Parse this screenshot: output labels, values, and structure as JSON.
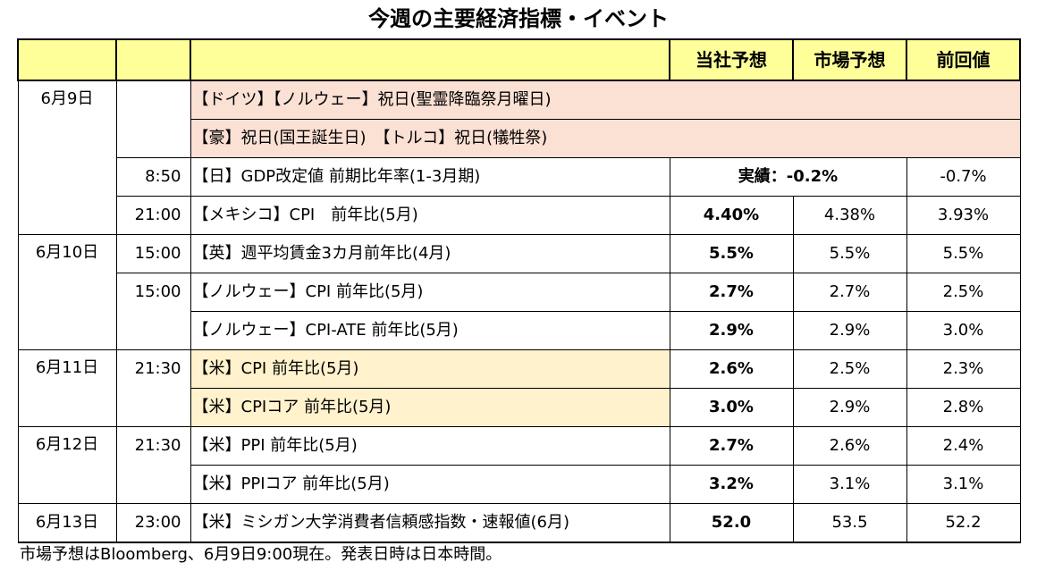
{
  "title": "今週の主要経済指標・イベント",
  "header": {
    "col_forecast": "当社予想",
    "col_market": "市場予想",
    "col_previous": "前回値"
  },
  "rows": [
    {
      "date": "6月9日",
      "time": "",
      "indicator": "【ドイツ】【ノルウェー】祝日(聖霊降臨祭月曜日)",
      "type": "holiday"
    },
    {
      "date": "",
      "time": "",
      "indicator": "【豪】祝日(国王誕生日)　【トルコ】祝日(犠牲祭)",
      "type": "holiday"
    },
    {
      "date": "",
      "time": "8:50",
      "indicator": "【日】GDP改定値 前期比年率(1-3月期)",
      "actual": "実績：-0.2%",
      "previous": "-0.7%",
      "type": "actual"
    },
    {
      "date": "",
      "time": "21:00",
      "indicator": "【メキシコ】CPI　前年比(5月)",
      "forecast": "4.40%",
      "market": "4.38%",
      "previous": "3.93%"
    },
    {
      "date": "6月10日",
      "time": "15:00",
      "indicator": "【英】週平均賃金3カ月前年比(4月)",
      "forecast": "5.5%",
      "market": "5.5%",
      "previous": "5.5%"
    },
    {
      "date": "",
      "time": "15:00",
      "indicator": "【ノルウェー】CPI 前年比(5月)",
      "forecast": "2.7%",
      "market": "2.7%",
      "previous": "2.5%"
    },
    {
      "date": "",
      "time": "",
      "indicator": "【ノルウェー】CPI-ATE 前年比(5月)",
      "forecast": "2.9%",
      "market": "2.9%",
      "previous": "3.0%"
    },
    {
      "date": "6月11日",
      "time": "21:30",
      "indicator": "【米】CPI 前年比(5月)",
      "forecast": "2.6%",
      "market": "2.5%",
      "previous": "2.3%"
    },
    {
      "date": "",
      "time": "",
      "indicator": "【米】CPIコア 前年比(5月)",
      "forecast": "3.0%",
      "market": "2.9%",
      "previous": "2.8%"
    },
    {
      "date": "6月12日",
      "time": "21:30",
      "indicator": "【米】PPI 前年比(5月)",
      "forecast": "2.7%",
      "market": "2.6%",
      "previous": "2.4%"
    },
    {
      "date": "",
      "time": "",
      "indicator": "【米】PPIコア 前年比(5月)",
      "forecast": "3.2%",
      "market": "3.1%",
      "previous": "3.1%"
    },
    {
      "date": "6月13日",
      "time": "23:00",
      "indicator": "【米】ミシガン大学消費者信頼感指数・速報値(6月)",
      "forecast": "52.0",
      "market": "53.5",
      "previous": "52.2"
    }
  ],
  "footnote": "市場予想はBloomberg、6月9日9:00現在。発表日時は日本時間。",
  "colors": {
    "header_bg": "#ffff99",
    "holiday_bg": "#fbe0d4",
    "us_cpi_bg": "#fff2cc"
  }
}
